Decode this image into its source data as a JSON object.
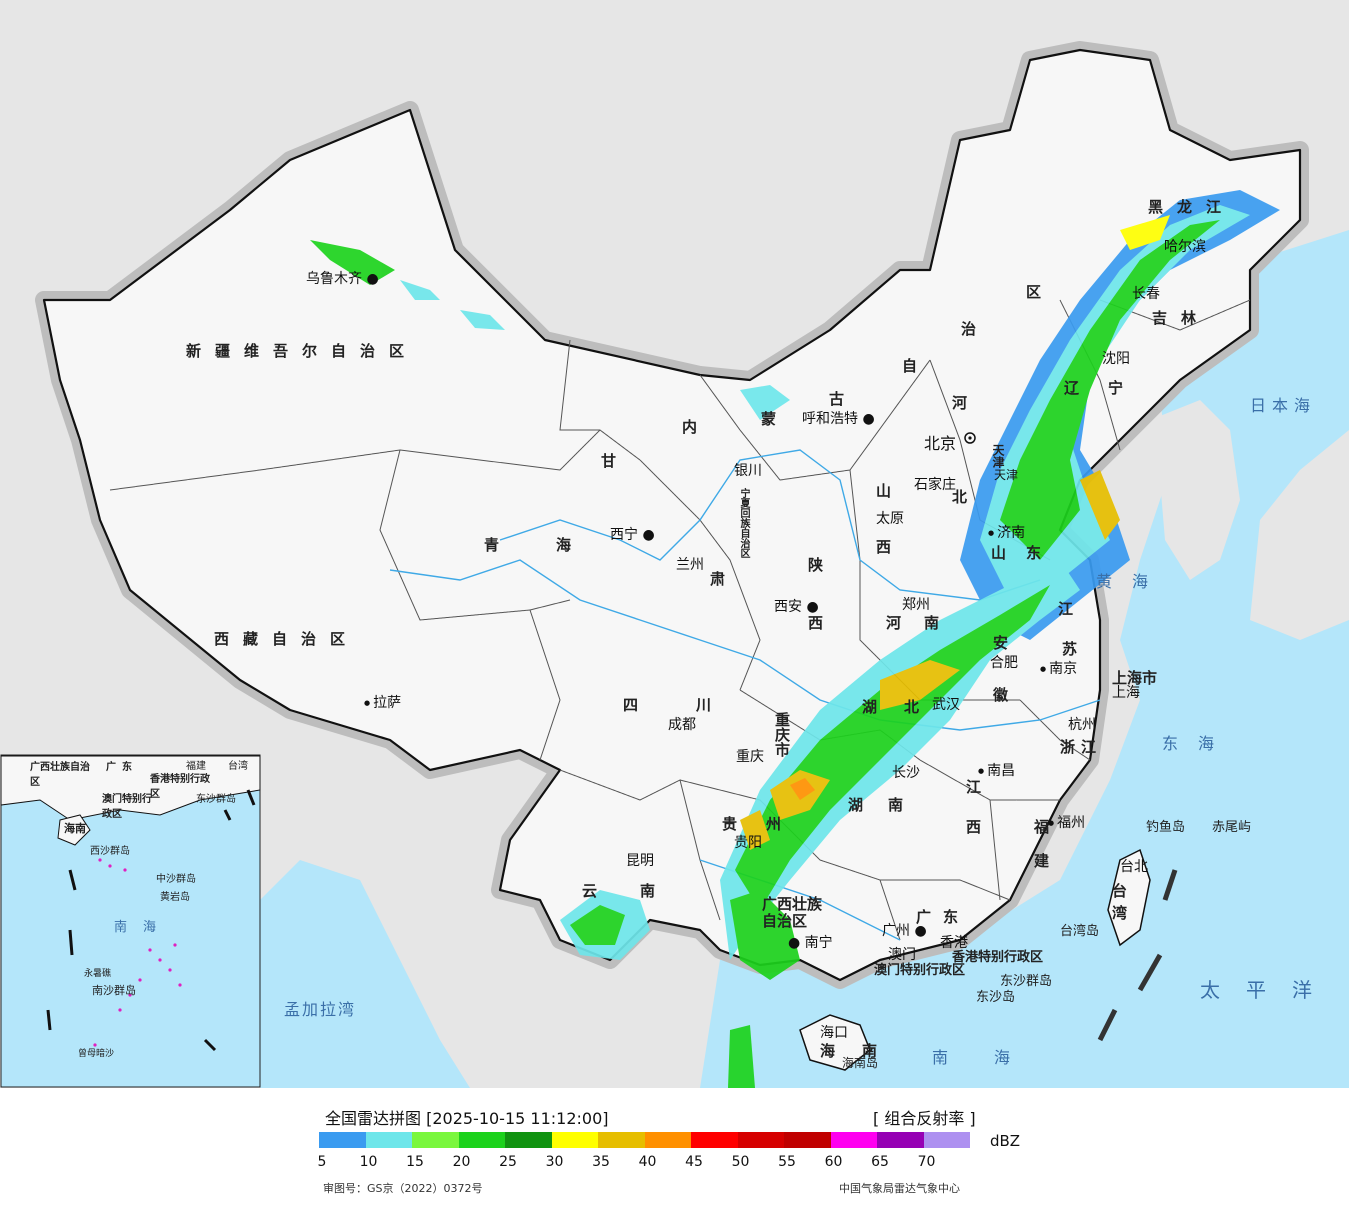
{
  "map": {
    "regions_large": [
      {
        "key": "xinjiang",
        "text": "新疆维吾尔自治区"
      },
      {
        "key": "xizang",
        "text": "西藏自治区"
      },
      {
        "key": "qinghai_1",
        "text": "青"
      },
      {
        "key": "qinghai_2",
        "text": "海"
      },
      {
        "key": "gansu",
        "text": "甘"
      },
      {
        "key": "gansu_2",
        "text": "肃"
      },
      {
        "key": "sichuan_1",
        "text": "四"
      },
      {
        "key": "sichuan_2",
        "text": "川"
      },
      {
        "key": "yunnan_1",
        "text": "云"
      },
      {
        "key": "yunnan_2",
        "text": "南"
      },
      {
        "key": "neimenggu_1",
        "text": "内"
      },
      {
        "key": "neimenggu_2",
        "text": "蒙"
      },
      {
        "key": "neimenggu_3",
        "text": "古"
      },
      {
        "key": "neimenggu_4",
        "text": "自"
      },
      {
        "key": "neimenggu_5",
        "text": "治"
      },
      {
        "key": "neimenggu_6",
        "text": "区"
      },
      {
        "key": "heilongjiang",
        "text": "黑龙江"
      },
      {
        "key": "jilin",
        "text": "吉林"
      },
      {
        "key": "liaoning_1",
        "text": "辽"
      },
      {
        "key": "liaoning_2",
        "text": "宁"
      },
      {
        "key": "hebei_1",
        "text": "河"
      },
      {
        "key": "hebei_2",
        "text": "北"
      },
      {
        "key": "shanxi_1",
        "text": "山"
      },
      {
        "key": "shanxi_2",
        "text": "西"
      },
      {
        "key": "shaanxi_1",
        "text": "陕"
      },
      {
        "key": "shaanxi_2",
        "text": "西"
      },
      {
        "key": "shandong_1",
        "text": "山"
      },
      {
        "key": "shandong_2",
        "text": "东"
      },
      {
        "key": "henan_1",
        "text": "河"
      },
      {
        "key": "henan_2",
        "text": "南"
      },
      {
        "key": "jiangsu_1",
        "text": "江"
      },
      {
        "key": "jiangsu_2",
        "text": "苏"
      },
      {
        "key": "anhui_1",
        "text": "安"
      },
      {
        "key": "anhui_2",
        "text": "徽"
      },
      {
        "key": "hubei_1",
        "text": "湖"
      },
      {
        "key": "hubei_2",
        "text": "北"
      },
      {
        "key": "hunan_1",
        "text": "湖"
      },
      {
        "key": "hunan_2",
        "text": "南"
      },
      {
        "key": "jiangxi_1",
        "text": "江"
      },
      {
        "key": "jiangxi_2",
        "text": "西"
      },
      {
        "key": "zhejiang",
        "text": "浙江"
      },
      {
        "key": "fujian_1",
        "text": "福"
      },
      {
        "key": "fujian_2",
        "text": "建"
      },
      {
        "key": "guizhou_1",
        "text": "贵"
      },
      {
        "key": "guizhou_2",
        "text": "州"
      },
      {
        "key": "guangdong",
        "text": "广东"
      },
      {
        "key": "hainan_1",
        "text": "海"
      },
      {
        "key": "hainan_2",
        "text": "南"
      },
      {
        "key": "taiwan_1",
        "text": "台"
      },
      {
        "key": "taiwan_2",
        "text": "湾"
      },
      {
        "key": "ningxia",
        "text": "宁夏回族自治区"
      },
      {
        "key": "guangxi_1",
        "text": "广西壮族"
      },
      {
        "key": "guangxi_2",
        "text": "自治区"
      },
      {
        "key": "chongqing",
        "text": "重庆市"
      },
      {
        "key": "shanghai",
        "text": "上海市"
      },
      {
        "key": "tianjin",
        "text": "天津"
      },
      {
        "key": "hk",
        "text": "香港特别行政区"
      },
      {
        "key": "macau",
        "text": "澳门特别行政区"
      }
    ],
    "cities": [
      {
        "key": "urumqi",
        "text": "乌鲁木齐"
      },
      {
        "key": "lhasa",
        "text": "拉萨"
      },
      {
        "key": "xining",
        "text": "西宁"
      },
      {
        "key": "lanzhou",
        "text": "兰州"
      },
      {
        "key": "chengdu",
        "text": "成都"
      },
      {
        "key": "chongqing",
        "text": "重庆"
      },
      {
        "key": "kunming",
        "text": "昆明"
      },
      {
        "key": "guiyang",
        "text": "贵阳"
      },
      {
        "key": "nanning",
        "text": "南宁"
      },
      {
        "key": "guangzhou",
        "text": "广州"
      },
      {
        "key": "macau",
        "text": "澳门"
      },
      {
        "key": "hongkong",
        "text": "香港"
      },
      {
        "key": "haikou",
        "text": "海口"
      },
      {
        "key": "changsha",
        "text": "长沙"
      },
      {
        "key": "wuhan",
        "text": "武汉"
      },
      {
        "key": "nanchang",
        "text": "南昌"
      },
      {
        "key": "fuzhou",
        "text": "福州"
      },
      {
        "key": "taibei",
        "text": "台北"
      },
      {
        "key": "hangzhou",
        "text": "杭州"
      },
      {
        "key": "shanghai",
        "text": "上海"
      },
      {
        "key": "nanjing",
        "text": "南京"
      },
      {
        "key": "hefei",
        "text": "合肥"
      },
      {
        "key": "zhengzhou",
        "text": "郑州"
      },
      {
        "key": "xian",
        "text": "西安"
      },
      {
        "key": "taiyuan",
        "text": "太原"
      },
      {
        "key": "shijiazhuang",
        "text": "石家庄"
      },
      {
        "key": "beijing",
        "text": "北京"
      },
      {
        "key": "tianjin",
        "text": "天津"
      },
      {
        "key": "jinan",
        "text": "济南"
      },
      {
        "key": "shenyang",
        "text": "沈阳"
      },
      {
        "key": "changchun",
        "text": "长春"
      },
      {
        "key": "harbin",
        "text": "哈尔滨"
      },
      {
        "key": "hohhot",
        "text": "呼和浩特"
      },
      {
        "key": "yinchuan",
        "text": "银川"
      }
    ],
    "seas": [
      {
        "key": "japan_sea",
        "text": "日本海"
      },
      {
        "key": "yellow_sea",
        "text": "黄海"
      },
      {
        "key": "east_sea",
        "text": "东海"
      },
      {
        "key": "pacific",
        "text": "太平洋"
      },
      {
        "key": "south_sea",
        "text": "南海"
      },
      {
        "key": "bengal",
        "text": "孟加拉湾"
      }
    ],
    "islands": [
      {
        "key": "diaoyu",
        "text": "钓鱼岛"
      },
      {
        "key": "chiwei",
        "text": "赤尾屿"
      },
      {
        "key": "taiwan_island",
        "text": "台湾岛"
      },
      {
        "key": "dongsha_islands",
        "text": "东沙群岛"
      },
      {
        "key": "dongsha_island",
        "text": "东沙岛"
      },
      {
        "key": "hainan_island",
        "text": "海南岛"
      }
    ],
    "inset": {
      "labels": [
        {
          "key": "i_guangxi",
          "text": "广西壮族自治区"
        },
        {
          "key": "i_guangdong",
          "text": "广东"
        },
        {
          "key": "i_fujian",
          "text": "福建"
        },
        {
          "key": "i_taiwan",
          "text": "台湾"
        },
        {
          "key": "i_hk",
          "text": "香港特别行政区"
        },
        {
          "key": "i_macau",
          "text": "澳门特别行政区"
        },
        {
          "key": "i_dongsha",
          "text": "东沙群岛"
        },
        {
          "key": "i_hainan",
          "text": "海南"
        },
        {
          "key": "i_xisha",
          "text": "西沙群岛"
        },
        {
          "key": "i_zhongsha",
          "text": "中沙群岛"
        },
        {
          "key": "i_huangyan",
          "text": "黄岩岛"
        },
        {
          "key": "i_nanhai",
          "text": "南海"
        },
        {
          "key": "i_nansha",
          "text": "南沙群岛"
        },
        {
          "key": "i_yongshu",
          "text": "永暑礁"
        },
        {
          "key": "i_zengmu",
          "text": "曾母暗沙"
        }
      ]
    }
  },
  "legend": {
    "title": "全国雷达拼图 [2025-10-15 11:12:00]",
    "product": "[ 组合反射率 ]",
    "unit": "dBZ",
    "scale": [
      {
        "value": "5",
        "color": "#3a9bf0"
      },
      {
        "value": "10",
        "color": "#6ee6ea"
      },
      {
        "value": "15",
        "color": "#7af73e"
      },
      {
        "value": "20",
        "color": "#1cd21c"
      },
      {
        "value": "25",
        "color": "#109310"
      },
      {
        "value": "30",
        "color": "#ffff00"
      },
      {
        "value": "35",
        "color": "#e6be00"
      },
      {
        "value": "40",
        "color": "#ff9000"
      },
      {
        "value": "45",
        "color": "#ff0000"
      },
      {
        "value": "50",
        "color": "#d60000"
      },
      {
        "value": "55",
        "color": "#c00000"
      },
      {
        "value": "60",
        "color": "#ff00f0"
      },
      {
        "value": "65",
        "color": "#9600b4"
      },
      {
        "value": "70",
        "color": "#ad90f0"
      }
    ],
    "approval": "审图号：GS京（2022）0372号",
    "org": "中国气象局雷达气象中心"
  },
  "colors": {
    "sea": "#b4e6fa",
    "land_outside": "#e6e6e6",
    "china_land": "#f7f7f7",
    "border": "#111111",
    "river": "#3fa9e6"
  }
}
